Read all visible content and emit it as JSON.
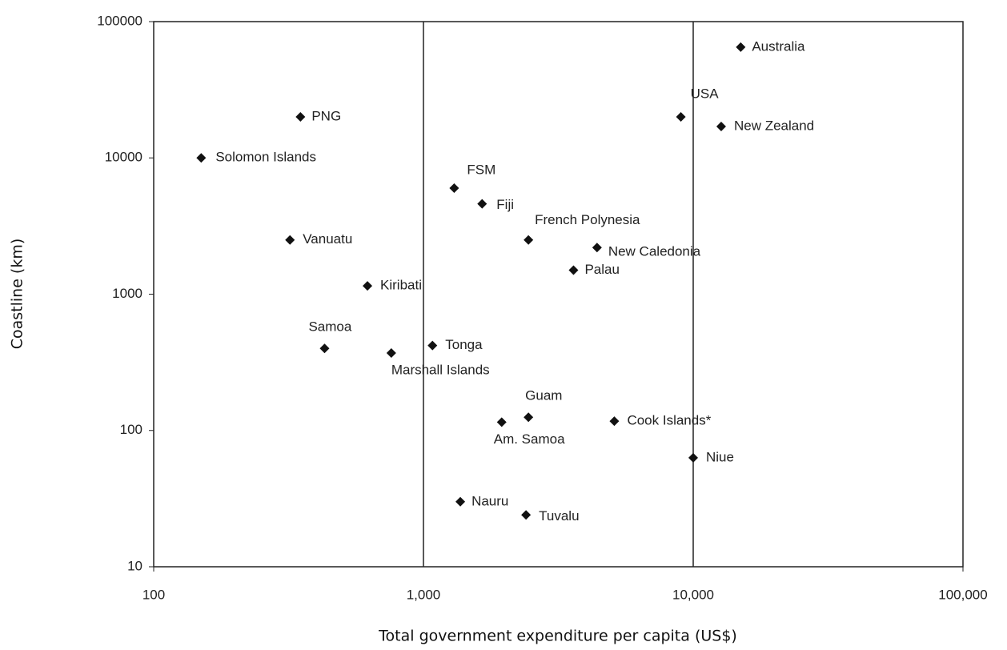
{
  "chart_data": {
    "type": "scatter",
    "x_label": "Total government expenditure per capita (US$)",
    "y_label": "Coastline (km)",
    "x_log": true,
    "y_log": true,
    "xlim": [
      100,
      100000
    ],
    "ylim": [
      10,
      100000
    ],
    "xticks": [
      100,
      {
        "value": 1000,
        "label": "1,000"
      },
      {
        "value": 10000,
        "label": "10,000"
      },
      {
        "value": 100000,
        "label": "100,000"
      }
    ],
    "yticks": [
      10,
      100,
      1000,
      10000,
      100000
    ],
    "grid_x": true,
    "color": "#111111",
    "series": [
      {
        "names": [
          "Australia",
          "USA",
          "New Zealand",
          "PNG",
          "Solomon Islands",
          "FSM",
          "Fiji",
          "French Polynesia",
          "New Caledonia",
          "Palau",
          "Vanuatu",
          "Kiribati",
          "Samoa",
          "Marshall Islands",
          "Tonga",
          "Guam",
          "Am. Samoa",
          "Cook Islands*",
          "Niue",
          "Nauru",
          "Tuvalu"
        ],
        "x": [
          15000,
          9000,
          12700,
          350,
          150,
          1300,
          1650,
          2450,
          4400,
          3600,
          320,
          620,
          430,
          760,
          1080,
          2450,
          1950,
          5100,
          10000,
          1370,
          2400
        ],
        "values": [
          65000,
          20000,
          17000,
          20000,
          10000,
          6000,
          4600,
          2500,
          2200,
          1500,
          2500,
          1150,
          400,
          370,
          420,
          125,
          115,
          117,
          63,
          30,
          24
        ]
      }
    ]
  }
}
